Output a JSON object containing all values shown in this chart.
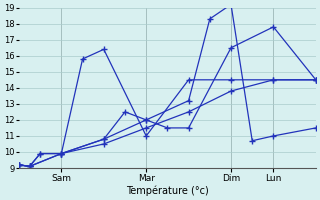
{
  "xlabel": "Température (°c)",
  "background_color": "#d8f0f0",
  "grid_color": "#aacccc",
  "line_color": "#2233bb",
  "ylim_min": 9,
  "ylim_max": 19,
  "xlim_min": 0,
  "xlim_max": 336,
  "day_ticks": [
    48,
    144,
    240,
    288
  ],
  "day_labels": [
    "Sam",
    "Mar",
    "Dim",
    "Lun"
  ],
  "lines": [
    {
      "x": [
        0,
        12,
        24,
        48,
        72,
        96,
        144,
        192,
        240,
        288,
        336
      ],
      "y": [
        9.2,
        9.1,
        9.9,
        9.9,
        15.8,
        16.4,
        11.0,
        14.5,
        14.5,
        14.5,
        14.5
      ]
    },
    {
      "x": [
        0,
        12,
        24,
        48,
        96,
        144,
        192,
        216,
        240,
        264,
        288,
        336
      ],
      "y": [
        9.2,
        9.1,
        9.9,
        9.9,
        10.8,
        12.0,
        13.2,
        18.3,
        19.2,
        10.7,
        11.0,
        11.5
      ]
    },
    {
      "x": [
        0,
        12,
        48,
        96,
        144,
        192,
        240,
        288,
        336
      ],
      "y": [
        9.2,
        9.1,
        9.9,
        10.5,
        11.5,
        12.5,
        13.8,
        14.5,
        14.5
      ]
    },
    {
      "x": [
        0,
        12,
        48,
        96,
        120,
        144,
        168,
        192,
        240,
        288,
        336
      ],
      "y": [
        9.2,
        9.1,
        9.9,
        10.8,
        12.5,
        12.0,
        11.5,
        11.5,
        16.5,
        17.8,
        14.5
      ]
    }
  ]
}
